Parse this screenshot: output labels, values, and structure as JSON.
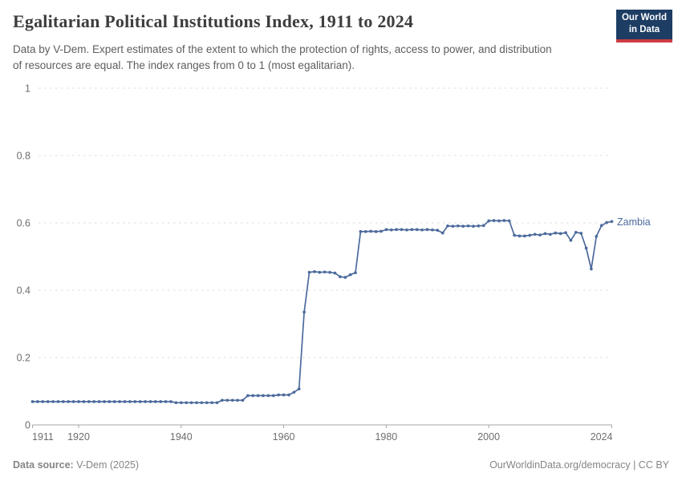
{
  "header": {
    "title": "Egalitarian Political Institutions Index, 1911 to 2024",
    "subtitle": "Data by V-Dem. Expert estimates of the extent to which the protection of rights, access to power, and distribution of resources are equal. The index ranges from 0 to 1 (most egalitarian).",
    "logo": {
      "line1": "Our World",
      "line2": "in Data"
    }
  },
  "footer": {
    "source_label": "Data source:",
    "source_value": " V-Dem (2025)",
    "link": "OurWorldinData.org/democracy",
    "separator": " | ",
    "license": "CC BY"
  },
  "colors": {
    "title": "#3d3d3d",
    "subtitle": "#5e5e5e",
    "footer": "#858585",
    "logo_bg": "#1d3d63",
    "logo_accent": "#cc3b44",
    "line": "#4C6A9C",
    "grid": "#dcdcdc",
    "axis": "#a5a5a5",
    "tick_label": "#6e6e6e"
  },
  "chart_data": {
    "type": "line",
    "title": "Egalitarian Political Institutions Index, 1911 to 2024",
    "xlabel": "",
    "ylabel": "",
    "xlim": [
      1911,
      2024
    ],
    "ylim": [
      0,
      1
    ],
    "xticks": [
      1911,
      1920,
      1940,
      1960,
      1980,
      2000,
      2024
    ],
    "yticks": [
      0,
      0.2,
      0.4,
      0.6,
      0.8,
      1
    ],
    "ytick_labels": [
      "0",
      "0.2",
      "0.4",
      "0.6",
      "0.8",
      "1"
    ],
    "grid": "horizontal-dashed",
    "legend_position": "end-of-line-label",
    "markers": true,
    "x_start": 1911,
    "x_step": 1,
    "x_end": 2024,
    "series": [
      {
        "name": "Zambia",
        "values": [
          0.069,
          0.069,
          0.069,
          0.069,
          0.069,
          0.069,
          0.069,
          0.069,
          0.069,
          0.069,
          0.069,
          0.069,
          0.069,
          0.069,
          0.069,
          0.069,
          0.069,
          0.069,
          0.069,
          0.069,
          0.069,
          0.069,
          0.069,
          0.069,
          0.069,
          0.069,
          0.069,
          0.069,
          0.066,
          0.066,
          0.066,
          0.066,
          0.066,
          0.066,
          0.066,
          0.066,
          0.066,
          0.073,
          0.073,
          0.073,
          0.073,
          0.073,
          0.087,
          0.087,
          0.087,
          0.087,
          0.087,
          0.087,
          0.089,
          0.089,
          0.089,
          0.097,
          0.107,
          0.335,
          0.453,
          0.455,
          0.453,
          0.454,
          0.453,
          0.451,
          0.44,
          0.438,
          0.446,
          0.452,
          0.574,
          0.574,
          0.575,
          0.574,
          0.575,
          0.58,
          0.579,
          0.58,
          0.58,
          0.579,
          0.58,
          0.58,
          0.579,
          0.58,
          0.579,
          0.578,
          0.57,
          0.591,
          0.59,
          0.591,
          0.59,
          0.591,
          0.59,
          0.591,
          0.592,
          0.606,
          0.607,
          0.606,
          0.607,
          0.606,
          0.563,
          0.561,
          0.561,
          0.563,
          0.566,
          0.564,
          0.568,
          0.566,
          0.57,
          0.568,
          0.571,
          0.548,
          0.572,
          0.569,
          0.525,
          0.463,
          0.56,
          0.592,
          0.601,
          0.604
        ]
      }
    ]
  }
}
